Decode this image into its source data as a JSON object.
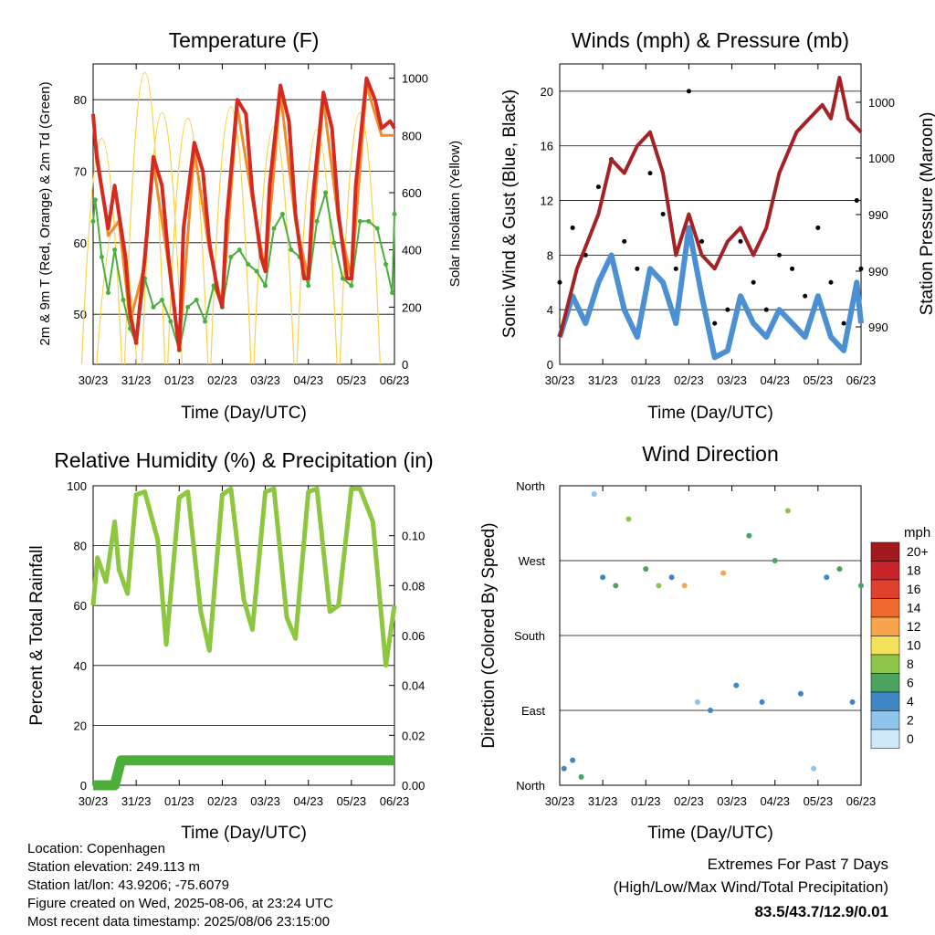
{
  "x_tick_labels": [
    "30/23",
    "31/23",
    "01/23",
    "02/23",
    "03/23",
    "04/23",
    "05/23",
    "06/23"
  ],
  "chart_data": [
    {
      "type": "line",
      "title": "Temperature (F)",
      "xlabel": "Time (Day/UTC)",
      "ylabel": "2m & 9m T (Red, Orange) & 2m Td (Green)",
      "y2label": "Solar Insolation (Yellow)",
      "ylim": [
        43,
        85
      ],
      "y2lim": [
        0,
        1050
      ],
      "y_ticks": [
        50,
        60,
        70,
        80
      ],
      "y2_ticks": [
        0,
        200,
        400,
        600,
        800,
        1000
      ],
      "series": [
        {
          "name": "2m T",
          "color": "#d42a20",
          "x": [
            0,
            0.08,
            0.35,
            0.5,
            0.6,
            0.75,
            0.86,
            1.0,
            1.2,
            1.4,
            1.6,
            1.75,
            1.9,
            2.0,
            2.1,
            2.35,
            2.55,
            2.7,
            2.9,
            3.0,
            3.1,
            3.35,
            3.55,
            3.7,
            3.9,
            4.0,
            4.1,
            4.35,
            4.55,
            4.7,
            4.9,
            5.0,
            5.1,
            5.35,
            5.55,
            5.7,
            5.9,
            6.0,
            6.1,
            6.35,
            6.55,
            6.7,
            6.9,
            7.0
          ],
          "y": [
            78,
            72,
            62,
            68,
            64,
            58,
            50,
            46,
            58,
            72,
            68,
            58,
            50,
            45,
            62,
            74,
            70,
            60,
            53,
            51,
            63,
            80,
            78,
            67,
            58,
            56,
            68,
            82,
            77,
            64,
            55,
            55,
            66,
            81,
            76,
            64,
            55,
            55,
            68,
            83,
            80,
            76,
            77,
            76
          ]
        },
        {
          "name": "9m T",
          "color": "#f28c28",
          "x": [
            0,
            0.35,
            0.6,
            0.86,
            1.2,
            1.4,
            1.75,
            2.0,
            2.35,
            2.7,
            3.0,
            3.35,
            3.7,
            4.0,
            4.35,
            4.7,
            5.0,
            5.35,
            5.7,
            6.0,
            6.35,
            6.7,
            7.0
          ],
          "y": [
            77,
            61,
            63,
            49,
            57,
            71,
            57,
            45,
            73,
            59,
            51,
            79,
            66,
            56,
            81,
            63,
            55,
            80,
            63,
            55,
            82,
            75,
            75
          ]
        },
        {
          "name": "2m Td",
          "color": "#4aaf3c",
          "x": [
            0,
            0.05,
            0.2,
            0.35,
            0.5,
            0.7,
            0.86,
            1.0,
            1.2,
            1.4,
            1.6,
            1.8,
            2.0,
            2.2,
            2.4,
            2.6,
            2.8,
            3.0,
            3.2,
            3.4,
            3.6,
            3.8,
            4.0,
            4.2,
            4.4,
            4.6,
            4.8,
            5.0,
            5.2,
            5.4,
            5.6,
            5.8,
            6.0,
            6.2,
            6.4,
            6.6,
            6.8,
            6.95,
            7.0
          ],
          "y": [
            63,
            66,
            58,
            53,
            59,
            52,
            48,
            46,
            55,
            51,
            52,
            49,
            45,
            51,
            52,
            49,
            54,
            51,
            58,
            59,
            57,
            56,
            54,
            62,
            64,
            59,
            58,
            54,
            63,
            67,
            60,
            55,
            54,
            63,
            63,
            62,
            57,
            53,
            64
          ]
        },
        {
          "name": "Solar Insolation",
          "axis": "y2",
          "color": "#f7d24a",
          "peaks": [
            {
              "day": 0.2,
              "value": 790
            },
            {
              "day": 0.55,
              "value": 500
            },
            {
              "day": 1.2,
              "value": 1020
            },
            {
              "day": 1.6,
              "value": 880
            },
            {
              "day": 2.2,
              "value": 860
            },
            {
              "day": 3.2,
              "value": 900
            },
            {
              "day": 4.2,
              "value": 830
            },
            {
              "day": 5.2,
              "value": 820
            },
            {
              "day": 6.2,
              "value": 880
            }
          ]
        }
      ]
    },
    {
      "type": "scatter",
      "title": "Winds (mph) & Pressure (mb)",
      "xlabel": "Time (Day/UTC)",
      "ylabel": "Sonic Wind & Gust (Blue, Black)",
      "y2label": "Station Pressure (Maroon)",
      "ylim": [
        0,
        22
      ],
      "y_ticks": [
        0,
        4,
        8,
        12,
        16,
        20
      ],
      "y2_tick_labels": [
        "1000",
        "1000",
        "990",
        "990",
        "990"
      ],
      "series": [
        {
          "name": "Sonic Wind",
          "color": "#4a90d2",
          "x": [
            0,
            0.3,
            0.6,
            0.9,
            1.2,
            1.5,
            1.8,
            2.1,
            2.4,
            2.7,
            3.0,
            3.3,
            3.6,
            3.9,
            4.2,
            4.5,
            4.8,
            5.1,
            5.4,
            5.7,
            6.0,
            6.3,
            6.6,
            6.9,
            7.0
          ],
          "y": [
            2,
            5,
            3,
            6,
            8,
            4,
            2,
            7,
            6,
            3,
            10,
            5,
            0.5,
            1,
            5,
            3,
            2,
            4,
            3,
            2,
            5,
            2,
            1,
            6,
            3
          ]
        },
        {
          "name": "Gust",
          "color": "#000000",
          "x": [
            0,
            0.3,
            0.6,
            0.9,
            1.2,
            1.5,
            1.8,
            2.1,
            2.4,
            2.7,
            3.0,
            3.3,
            3.6,
            3.9,
            4.2,
            4.5,
            4.8,
            5.1,
            5.4,
            5.7,
            6.0,
            6.3,
            6.6,
            6.9,
            7.0
          ],
          "y": [
            6,
            10,
            8,
            13,
            15,
            9,
            7,
            14,
            11,
            7,
            20,
            9,
            3,
            4,
            9,
            6,
            4,
            8,
            7,
            5,
            10,
            6,
            3,
            12,
            7
          ]
        },
        {
          "name": "Station Pressure",
          "color": "#a32225",
          "x": [
            0,
            0.4,
            0.9,
            1.2,
            1.5,
            1.8,
            2.1,
            2.4,
            2.7,
            3.0,
            3.3,
            3.6,
            3.9,
            4.2,
            4.5,
            4.8,
            5.1,
            5.5,
            5.8,
            6.1,
            6.3,
            6.5,
            6.7,
            7.0
          ],
          "y": [
            2,
            7,
            11,
            15,
            14,
            16,
            17,
            14,
            8,
            11,
            8,
            7,
            9,
            10,
            8,
            10,
            14,
            17,
            18,
            19,
            18,
            21,
            18,
            17
          ]
        }
      ]
    },
    {
      "type": "line",
      "title": "Relative Humidity (%) & Precipitation (in)",
      "xlabel": "Time (Day/UTC)",
      "ylabel": "Percent & Total Rainfall",
      "ylim": [
        0,
        100
      ],
      "y2lim": [
        0,
        0.12
      ],
      "y_ticks": [
        0,
        20,
        40,
        60,
        80,
        100
      ],
      "y2_tick_labels": [
        "0.00",
        "0.02",
        "0.04",
        "0.06",
        "0.08",
        "0.10"
      ],
      "series": [
        {
          "name": "Relative Humidity",
          "color": "#8dc63f",
          "x": [
            0,
            0.1,
            0.3,
            0.5,
            0.6,
            0.8,
            1.0,
            1.2,
            1.5,
            1.7,
            2.0,
            2.2,
            2.5,
            2.7,
            3.0,
            3.2,
            3.5,
            3.7,
            4.0,
            4.2,
            4.5,
            4.7,
            5.0,
            5.2,
            5.5,
            5.7,
            6.0,
            6.2,
            6.5,
            6.8,
            7.0
          ],
          "y": [
            60,
            76,
            68,
            88,
            72,
            64,
            97,
            98,
            82,
            47,
            96,
            98,
            58,
            45,
            97,
            99,
            62,
            52,
            98,
            99,
            56,
            49,
            98,
            99,
            58,
            60,
            99,
            99,
            88,
            40,
            60
          ]
        },
        {
          "name": "Total Precipitation",
          "color": "#4caf3c",
          "x": [
            0,
            0.5,
            0.65,
            7.0
          ],
          "y": [
            0,
            0,
            0.01,
            0.01
          ]
        }
      ]
    },
    {
      "type": "scatter",
      "title": "Wind Direction",
      "xlabel": "Time (Day/UTC)",
      "ylabel": "Direction (Colored By Speed)",
      "y_tick_labels": [
        "North",
        "West",
        "South",
        "East",
        "North"
      ],
      "legend": {
        "title": "mph",
        "labels": [
          "20+",
          "18",
          "16",
          "14",
          "12",
          "10",
          "8",
          "6",
          "4",
          "2",
          "0"
        ],
        "colors": [
          "#a11a1e",
          "#c8252a",
          "#e0412f",
          "#f06a2e",
          "#f8a44c",
          "#f4e15b",
          "#8ec64b",
          "#4ca35f",
          "#3f87c4",
          "#8fc4ec",
          "#cfe9fa"
        ]
      },
      "series": [
        {
          "name": "Wind Direction",
          "x": [
            0.1,
            0.3,
            0.5,
            0.8,
            1.0,
            1.3,
            1.6,
            2.0,
            2.3,
            2.6,
            2.9,
            3.2,
            3.5,
            3.8,
            4.1,
            4.4,
            4.7,
            5.0,
            5.3,
            5.6,
            5.9,
            6.2,
            6.5,
            6.8,
            7.0
          ],
          "y": [
            20,
            30,
            10,
            350,
            250,
            240,
            320,
            260,
            240,
            250,
            240,
            100,
            90,
            255,
            120,
            300,
            100,
            270,
            330,
            110,
            20,
            250,
            260,
            100,
            240
          ],
          "speed": [
            3,
            4,
            5,
            2,
            4,
            6,
            8,
            5,
            7,
            3,
            11,
            2,
            3,
            12,
            4,
            6,
            3,
            5,
            7,
            4,
            2,
            3,
            5,
            4,
            6
          ]
        }
      ]
    }
  ],
  "info": {
    "location": "Location: Copenhagen",
    "elevation": "Station elevation: 249.113 m",
    "latlon": "Station lat/lon: 43.9206; -75.6079",
    "created": "Figure created on Wed, 2025-08-06, at 23:24 UTC",
    "recent": "Most recent data timestamp: 2025/08/06 23:15:00"
  },
  "extremes": {
    "title": "Extremes For Past 7 Days",
    "subtitle": "(High/Low/Max Wind/Total Precipitation)",
    "values": "83.5/43.7/12.9/0.01",
    "value_color": "#d22630"
  }
}
